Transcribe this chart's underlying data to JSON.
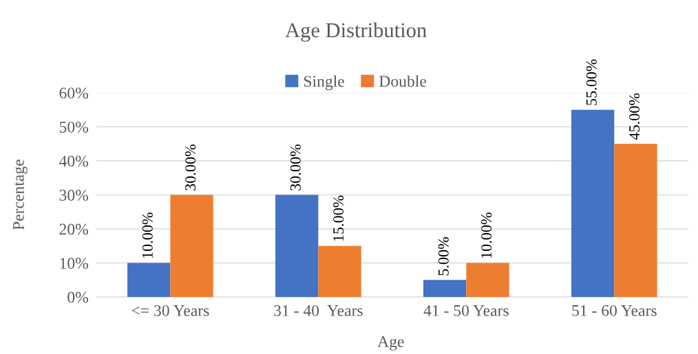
{
  "chart_data": {
    "type": "bar",
    "title": "Age Distribution",
    "xlabel": "Age",
    "ylabel": "Percentage",
    "categories": [
      "<= 30 Years",
      "31 - 40  Years",
      "41 - 50 Years",
      "51 - 60 Years"
    ],
    "series": [
      {
        "name": "Single",
        "color": "#4472c4",
        "values": [
          10,
          30,
          5,
          55
        ],
        "value_labels": [
          "10.00%",
          "30.00%",
          "5.00%",
          "55.00%"
        ]
      },
      {
        "name": "Double",
        "color": "#ed7d31",
        "values": [
          30,
          15,
          10,
          45
        ],
        "value_labels": [
          "30.00%",
          "15.00%",
          "10.00%",
          "45.00%"
        ]
      }
    ],
    "ylim": [
      0,
      60
    ],
    "yticks": [
      {
        "value": 0,
        "label": "0%"
      },
      {
        "value": 10,
        "label": "10%"
      },
      {
        "value": 20,
        "label": "20%"
      },
      {
        "value": 30,
        "label": "30%"
      },
      {
        "value": 40,
        "label": "40%"
      },
      {
        "value": 50,
        "label": "50%"
      },
      {
        "value": 60,
        "label": "60%"
      }
    ],
    "grid": "y",
    "legend": "top"
  }
}
